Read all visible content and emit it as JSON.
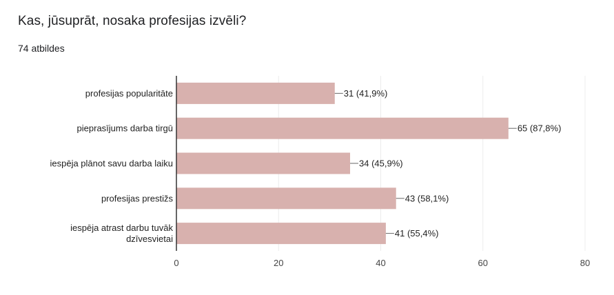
{
  "question": {
    "title": "Kas, jūsuprāt, nosaka profesijas izvēli?",
    "responses": "74 atbildes"
  },
  "chart_data": {
    "type": "bar",
    "orientation": "horizontal",
    "categories": [
      [
        "profesijas popularitāte"
      ],
      [
        "pieprasījums darba tirgū"
      ],
      [
        "iespēja plānot savu darba laiku"
      ],
      [
        "profesijas prestižs"
      ],
      [
        "iespēja atrast darbu tuvāk",
        "dzīvesvietai"
      ]
    ],
    "values": [
      31,
      65,
      34,
      43,
      41
    ],
    "data_labels": [
      "31 (41,9%)",
      "65 (87,8%)",
      "34 (45,9%)",
      "43 (58,1%)",
      "41 (55,4%)"
    ],
    "xlim": [
      0,
      80
    ],
    "xticks": [
      0,
      20,
      40,
      60,
      80
    ],
    "grid": true,
    "bar_color": "#d8b1ae"
  }
}
